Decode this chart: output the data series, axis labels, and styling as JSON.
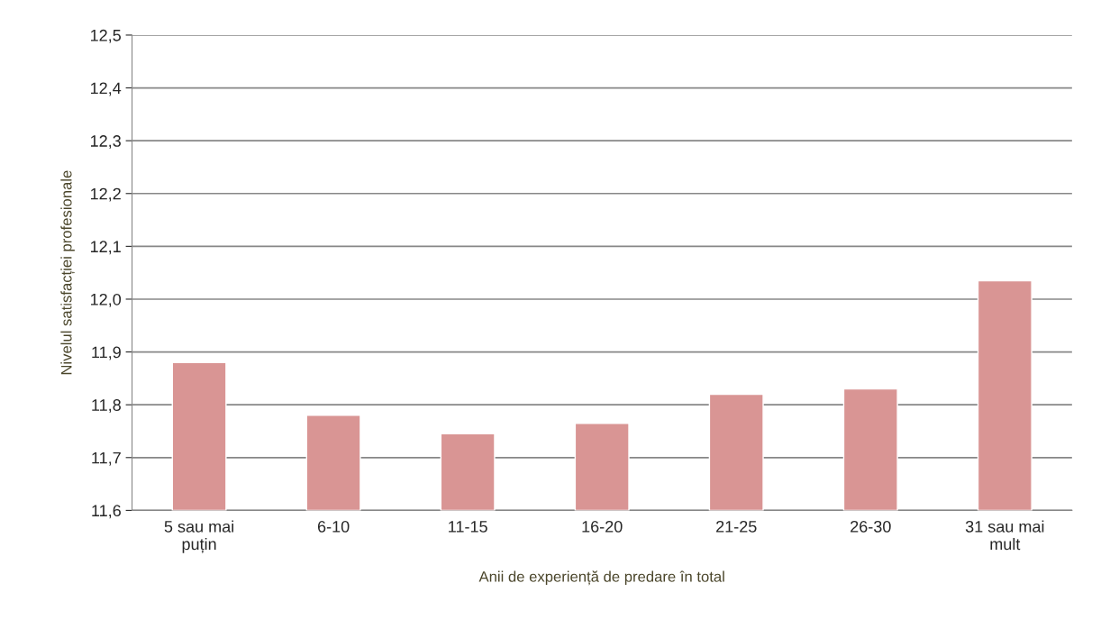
{
  "chart_data": {
    "type": "bar",
    "categories": [
      "5 sau mai\npuțin",
      "6-10",
      "11-15",
      "16-20",
      "21-25",
      "26-30",
      "31 sau mai\nmult"
    ],
    "values": [
      11.88,
      11.78,
      11.745,
      11.765,
      11.82,
      11.83,
      12.035
    ],
    "color": "#d99594",
    "xlabel": "Anii de experiență de predare în total",
    "ylabel": "Nivelul satisfacției profesionale",
    "ylim": [
      11.6,
      12.5
    ],
    "yticks": [
      {
        "value": 11.6,
        "label": "11,6"
      },
      {
        "value": 11.7,
        "label": "11,7"
      },
      {
        "value": 11.8,
        "label": "11,8"
      },
      {
        "value": 11.9,
        "label": "11,9"
      },
      {
        "value": 12.0,
        "label": "12,0"
      },
      {
        "value": 12.1,
        "label": "12,1"
      },
      {
        "value": 12.2,
        "label": "12,2"
      },
      {
        "value": 12.3,
        "label": "12,3"
      },
      {
        "value": 12.4,
        "label": "12,4"
      },
      {
        "value": 12.5,
        "label": "12,5"
      }
    ],
    "grid": "y"
  }
}
